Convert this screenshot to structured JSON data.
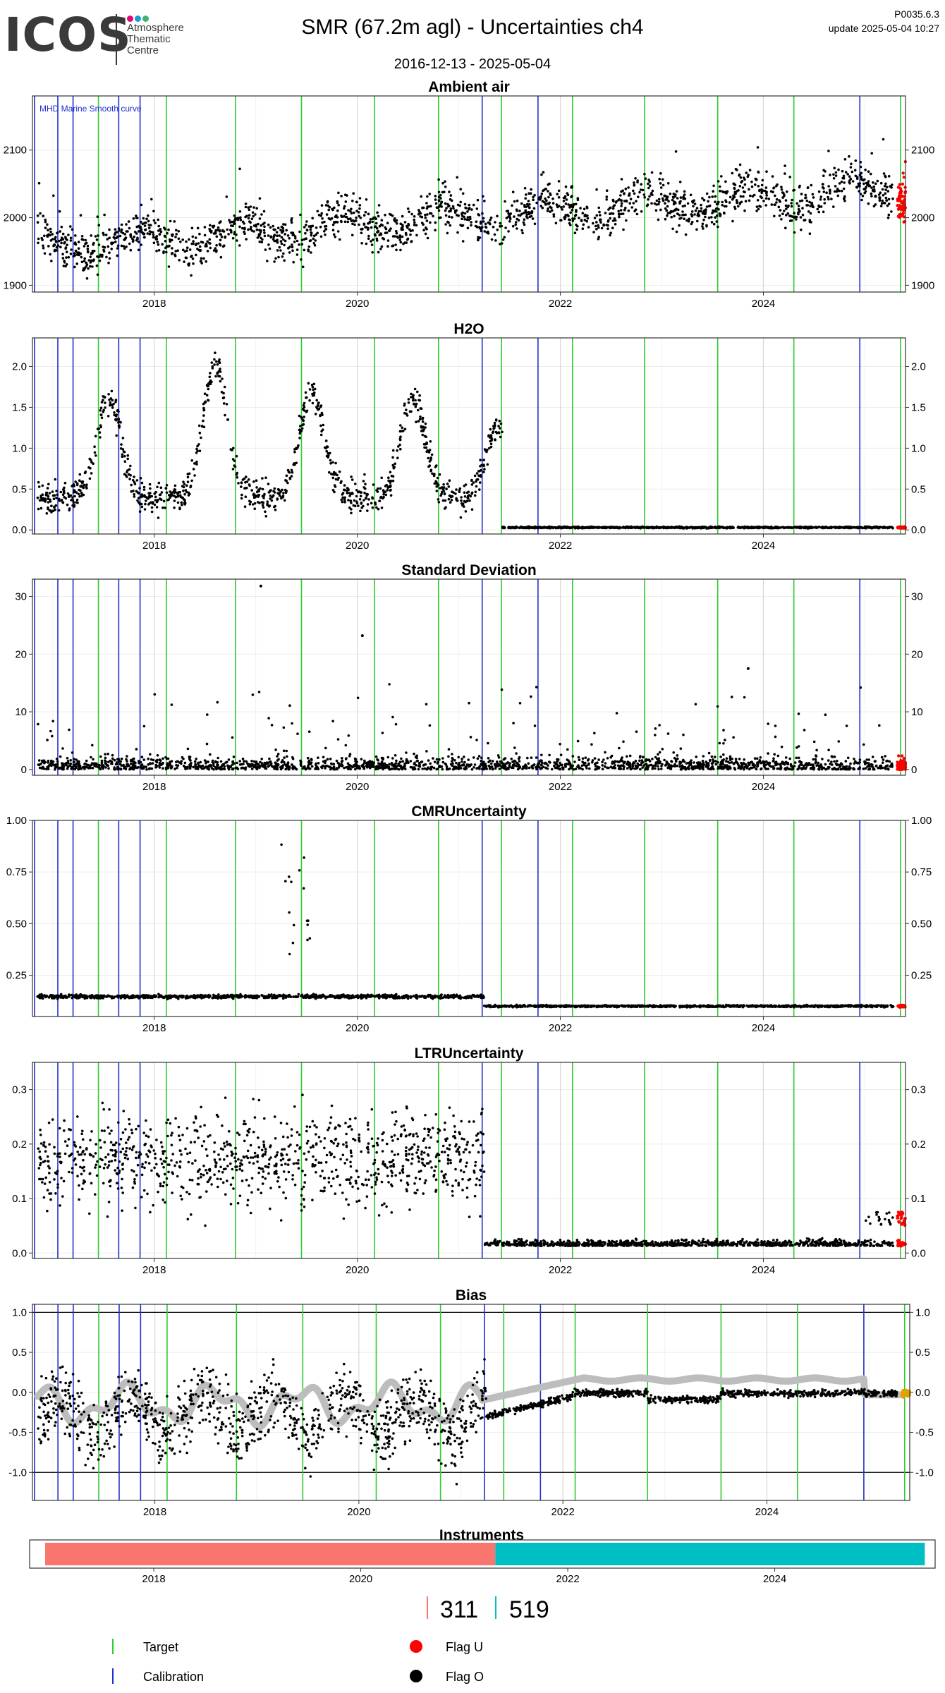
{
  "header": {
    "logo_text": "ICOS",
    "logo_sub": [
      "Atmosphere",
      "Thematic",
      "Centre"
    ],
    "logo_dot_colors": [
      "#e6007e",
      "#1e9bd7",
      "#3cb371"
    ],
    "title": "SMR  (67.2m agl) - Uncertainties ch4",
    "date_range": "2016-12-13 - 2025-05-04",
    "version": "P0035.6.3",
    "update": "update  2025-05-04 10:27"
  },
  "colors": {
    "target": "#2ecc2e",
    "calibration": "#1f2fd0",
    "flag_u": "#ff0000",
    "flag_o": "#000000",
    "bias_smooth": "#bdbdbd",
    "instrument_1": "#f8766d",
    "instrument_2": "#00bfc4"
  },
  "chart_data": [
    {
      "type": "scatter",
      "title": "Ambient air",
      "annotation": "MHD Marine Smooth curve",
      "xlim": [
        2016.8,
        2025.4
      ],
      "ylim": [
        1890,
        2180
      ],
      "yticks": [
        1900,
        2000,
        2100
      ],
      "yticklabels": [
        "1900",
        "2000",
        "2100"
      ],
      "series_summary": {
        "start": 1955,
        "end": 2040,
        "noise": 25
      },
      "grid": true
    },
    {
      "type": "scatter",
      "title": "H2O",
      "xlim": [
        2016.8,
        2025.4
      ],
      "ylim": [
        -0.05,
        2.35
      ],
      "yticks": [
        0,
        0.5,
        1,
        1.5,
        2
      ],
      "yticklabels": [
        "0.0",
        "0.5",
        "1.0",
        "1.5",
        "2.0"
      ],
      "series_summary": {
        "seasonal_peaks": [
          1.6,
          2.1,
          1.8,
          1.6,
          1.2
        ],
        "after_2021_5": 0.03
      },
      "grid": true
    },
    {
      "type": "scatter",
      "title": "Standard Deviation",
      "xlim": [
        2016.8,
        2025.4
      ],
      "ylim": [
        -1,
        33
      ],
      "yticks": [
        0,
        10,
        20,
        30
      ],
      "yticklabels": [
        "0",
        "10",
        "20",
        "30"
      ],
      "series_summary": {
        "typical": 2,
        "outliers": [
          [
            2019.05,
            31.8
          ],
          [
            2020.05,
            23.2
          ],
          [
            2023.85,
            17.5
          ]
        ]
      },
      "grid": true
    },
    {
      "type": "scatter",
      "title": "CMRUncertainty",
      "xlim": [
        2016.8,
        2025.4
      ],
      "ylim": [
        0.05,
        1.0
      ],
      "yticks": [
        0.25,
        0.5,
        0.75,
        1
      ],
      "yticklabels": [
        "0.25",
        "0.50",
        "0.75",
        "1.00"
      ],
      "series_summary": {
        "before_2021_25": 0.15,
        "after_2021_25": 0.1,
        "spike_2019_5": 0.93
      },
      "grid": true
    },
    {
      "type": "scatter",
      "title": "LTRUncertainty",
      "xlim": [
        2016.8,
        2025.4
      ],
      "ylim": [
        -0.01,
        0.35
      ],
      "yticks": [
        0,
        0.1,
        0.2,
        0.3
      ],
      "yticklabels": [
        "0.0",
        "0.1",
        "0.2",
        "0.3"
      ],
      "series_summary": {
        "before_2021_25": 0.17,
        "after_2021_25": 0.015
      },
      "grid": true
    },
    {
      "type": "scatter",
      "title": "Bias",
      "xlim": [
        2016.8,
        2025.4
      ],
      "ylim": [
        -1.35,
        1.1
      ],
      "yticks": [
        -1,
        -0.5,
        0,
        0.5,
        1
      ],
      "yticklabels": [
        "-1.0",
        "-0.5",
        "0.0",
        "0.5",
        "1.0"
      ],
      "reference_lines": [
        -1,
        1
      ],
      "series_summary": {
        "before_2021_25": -0.3,
        "after_2022": -0.02
      },
      "grid": true
    }
  ],
  "x_axis": {
    "ticks": [
      2018,
      2020,
      2022,
      2024
    ],
    "ticklabels": [
      "2018",
      "2020",
      "2022",
      "2024"
    ]
  },
  "target_dates": [
    2017.45,
    2018.12,
    2018.8,
    2019.45,
    2020.17,
    2020.8,
    2021.42,
    2022.12,
    2022.83,
    2023.55,
    2024.3,
    2025.35
  ],
  "calibration_dates": [
    2016.82,
    2017.05,
    2017.2,
    2017.65,
    2017.86,
    2021.23,
    2021.78,
    2024.95
  ],
  "instruments": {
    "title": "Instruments",
    "segments": [
      {
        "id": "311",
        "start": 2016.95,
        "end": 2021.3
      },
      {
        "id": "519",
        "start": 2021.3,
        "end": 2025.45
      }
    ],
    "xlim": [
      2016.8,
      2025.55
    ]
  },
  "legend": {
    "target": "Target",
    "calibration": "Calibration",
    "flag_u": "Flag U",
    "flag_o": "Flag O"
  }
}
